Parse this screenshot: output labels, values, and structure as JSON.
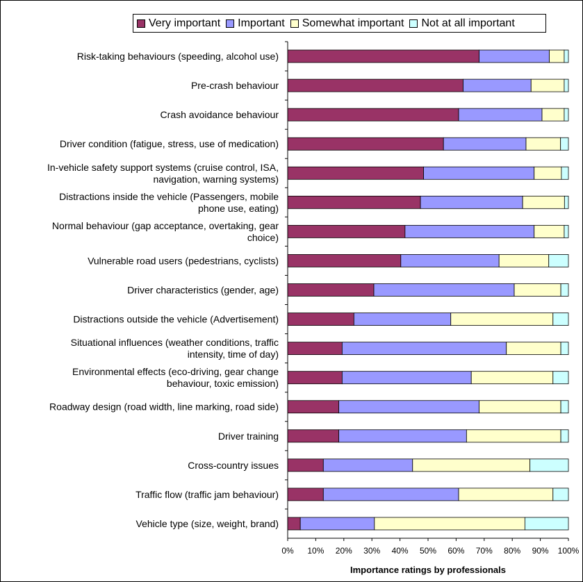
{
  "chart_data": {
    "type": "bar",
    "orientation": "horizontal",
    "stacked": "percent",
    "categories": [
      [
        "Risk-taking behaviours (speeding, alcohol use)"
      ],
      [
        "Pre-crash behaviour"
      ],
      [
        "Crash avoidance behaviour"
      ],
      [
        "Driver condition (fatigue, stress, use of medication)"
      ],
      [
        "In-vehicle safety support systems (cruise control, ISA,",
        "navigation, warning systems)"
      ],
      [
        "Distractions inside the vehicle (Passengers, mobile",
        "phone use, eating)"
      ],
      [
        "Normal behaviour (gap acceptance, overtaking, gear",
        "choice)"
      ],
      [
        "Vulnerable road users (pedestrians, cyclists)"
      ],
      [
        "Driver characteristics (gender, age)"
      ],
      [
        "Distractions outside the vehicle (Advertisement)"
      ],
      [
        "Situational influences (weather conditions, traffic",
        "intensity, time of day)"
      ],
      [
        "Environmental effects (eco-driving, gear change",
        "behaviour, toxic emission)"
      ],
      [
        "Roadway design (road width, line marking, road side)"
      ],
      [
        "Driver training"
      ],
      [
        "Cross-country issues"
      ],
      [
        "Traffic flow (traffic jam behaviour)"
      ],
      [
        "Vehicle type (size, weight, brand)"
      ]
    ],
    "series": [
      {
        "name": "Very important",
        "color": "#993366",
        "values": [
          68.2,
          62.5,
          60.9,
          55.5,
          48.4,
          47.3,
          41.8,
          40.3,
          30.7,
          23.6,
          19.4,
          19.4,
          18.2,
          18.2,
          12.7,
          12.7,
          4.5
        ]
      },
      {
        "name": "Important",
        "color": "#9999ff",
        "values": [
          25.0,
          24.2,
          29.7,
          29.4,
          39.4,
          36.4,
          46.0,
          35.0,
          50.0,
          34.5,
          58.5,
          46.0,
          50.0,
          45.5,
          31.8,
          48.2,
          26.4
        ]
      },
      {
        "name": "Somewhat important",
        "color": "#ffffcc",
        "values": [
          5.3,
          11.8,
          7.9,
          12.3,
          9.7,
          14.9,
          10.7,
          17.7,
          16.6,
          36.4,
          19.4,
          29.1,
          29.1,
          33.6,
          41.8,
          33.6,
          53.6
        ]
      },
      {
        "name": "Not at all important",
        "color": "#ccffff",
        "values": [
          1.5,
          1.5,
          1.5,
          2.8,
          2.5,
          1.4,
          1.5,
          7.0,
          2.7,
          5.5,
          2.7,
          5.5,
          2.7,
          2.7,
          13.7,
          5.5,
          15.5
        ]
      }
    ],
    "xticks": [
      "0%",
      "10%",
      "20%",
      "30%",
      "40%",
      "50%",
      "60%",
      "70%",
      "80%",
      "90%",
      "100%"
    ],
    "xlim": [
      0,
      100
    ],
    "xlabel": "Importance ratings by professionals",
    "grid": false,
    "legend_position": "top"
  }
}
